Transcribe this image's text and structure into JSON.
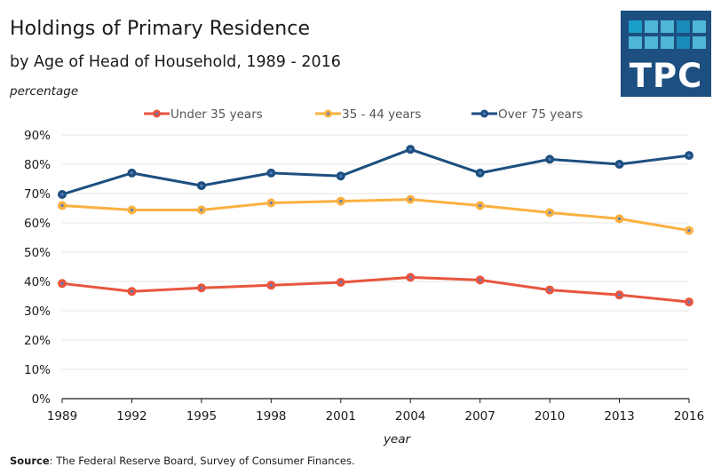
{
  "header": {
    "title": "Holdings of Primary Residence",
    "subtitle": "by Age of Head of Household, 1989 - 2016",
    "unit_label": "percentage"
  },
  "logo": {
    "text": "TPC",
    "background": "#1d4f80",
    "tile_colors": [
      [
        "#1aa0c8",
        "#4fb6d8",
        "#4fb6d8",
        "#1a8ab8",
        "#4fb6d8"
      ],
      [
        "#4fb6d8",
        "#4fb6d8",
        "#4fb6d8",
        "#1a8ab8",
        "#4fb6d8"
      ]
    ]
  },
  "source": {
    "label": "Source",
    "text": ": The Federal Reserve Board, Survey of Consumer Finances."
  },
  "chart_data": {
    "type": "line",
    "title": "Holdings of Primary Residence",
    "subtitle": "by Age of Head of Household, 1989 - 2016",
    "xlabel": "year",
    "ylabel": "percentage",
    "categories": [
      "1989",
      "1992",
      "1995",
      "1998",
      "2001",
      "2004",
      "2007",
      "2010",
      "2013",
      "2016"
    ],
    "ylim": [
      0,
      90
    ],
    "yticks": [
      0,
      10,
      20,
      30,
      40,
      50,
      60,
      70,
      80,
      90
    ],
    "ytick_labels": [
      "0%",
      "10%",
      "20%",
      "30%",
      "40%",
      "50%",
      "60%",
      "70%",
      "80%",
      "90%"
    ],
    "grid": true,
    "legend_position": "top-center",
    "series": [
      {
        "name": "Under 35 years",
        "color": "#e8553e",
        "values": [
          39.3,
          36.6,
          37.8,
          38.7,
          39.7,
          41.4,
          40.5,
          37.1,
          35.4,
          33.0
        ]
      },
      {
        "name": "35 - 44 years",
        "color": "#fbb040",
        "values": [
          65.9,
          64.4,
          64.4,
          66.8,
          67.4,
          68.0,
          65.9,
          63.5,
          61.4,
          57.4
        ]
      },
      {
        "name": "Over 75 years",
        "color": "#1d4f80",
        "values": [
          69.7,
          77.0,
          72.7,
          77.0,
          76.0,
          85.1,
          77.0,
          81.7,
          80.0,
          83.0
        ]
      }
    ],
    "marker_center_color": "#5b7fbf"
  }
}
